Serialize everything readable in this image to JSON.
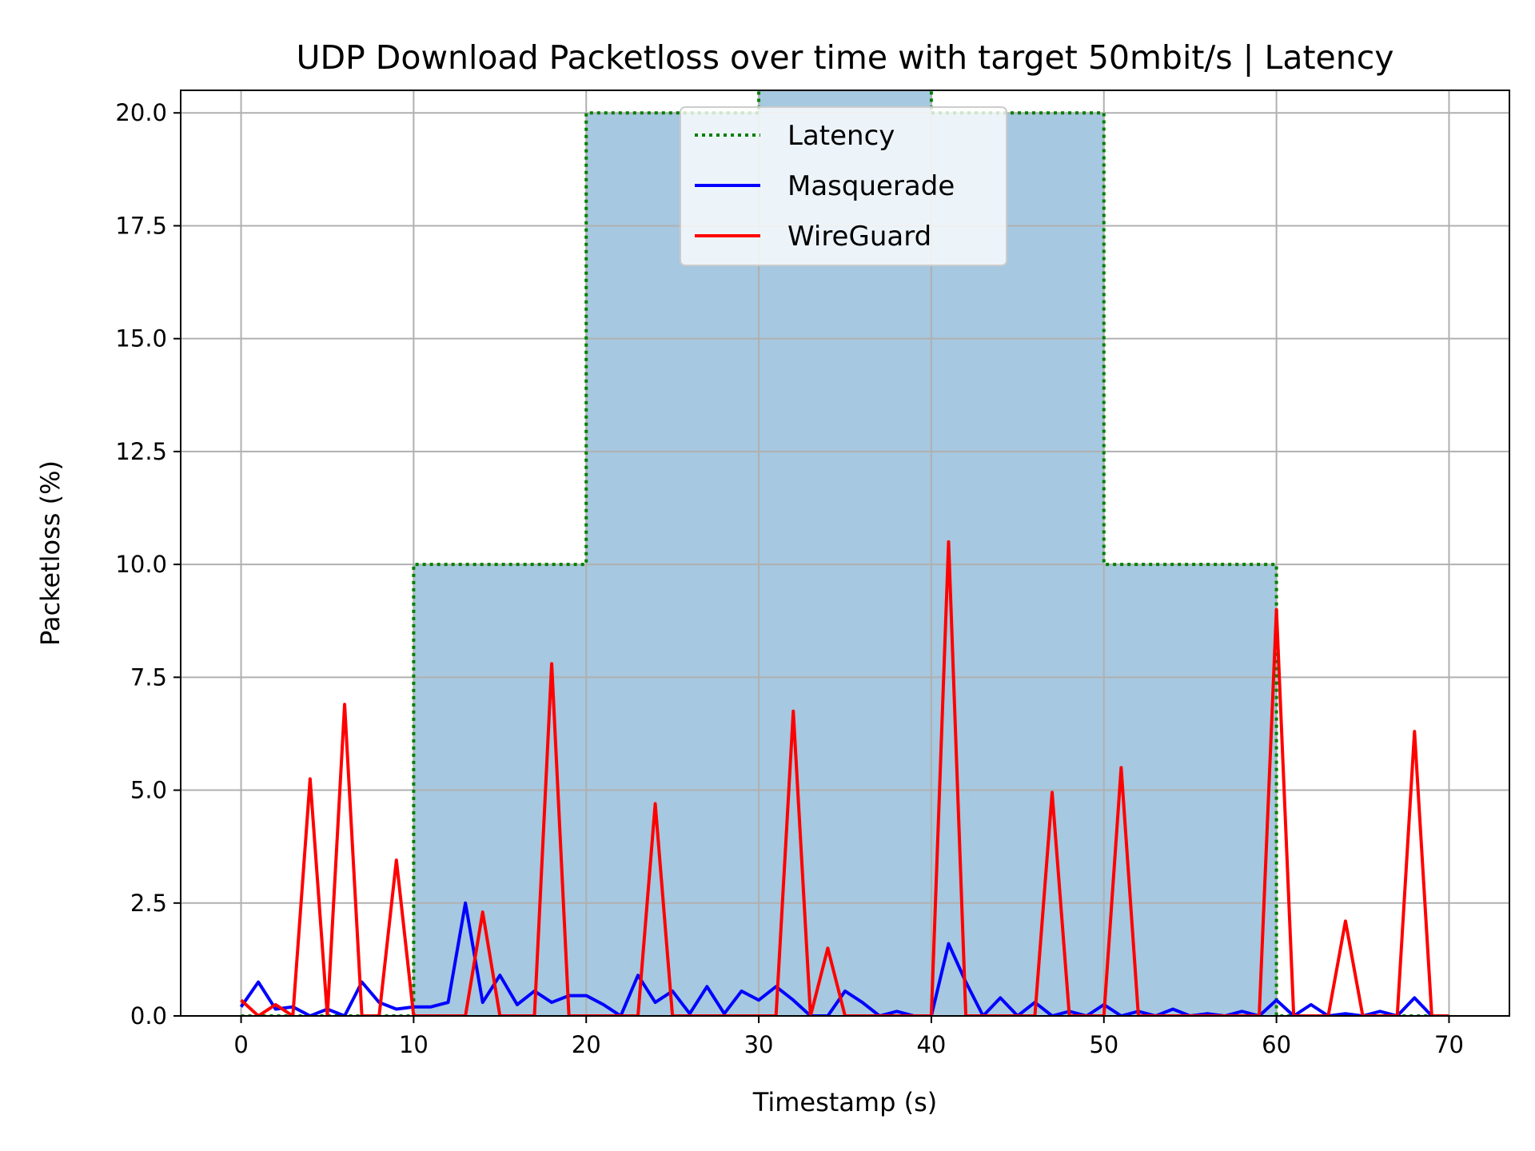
{
  "chart_data": {
    "type": "line",
    "title": "UDP Download Packetloss over time with target 50mbit/s | Latency",
    "xlabel": "Timestamp (s)",
    "ylabel": "Packetloss (%)",
    "xlim": [
      -3.5,
      73.5
    ],
    "ylim": [
      0,
      20.5
    ],
    "xticks": [
      0,
      10,
      20,
      30,
      40,
      50,
      60,
      70
    ],
    "yticks": [
      0,
      2.5,
      5,
      7.5,
      10,
      12.5,
      15,
      17.5,
      20
    ],
    "ytick_labels": [
      "0.0",
      "2.5",
      "5.0",
      "7.5",
      "10.0",
      "12.5",
      "15.0",
      "17.5",
      "20.0"
    ],
    "grid": true,
    "legend_position": "top-center",
    "fill_color": "#a6c8e0",
    "latency": {
      "name": "Latency",
      "color": "#008000",
      "style": "dotted",
      "steps": [
        {
          "x0": 0,
          "x1": 10,
          "y": 0
        },
        {
          "x0": 10,
          "x1": 20,
          "y": 10
        },
        {
          "x0": 20,
          "x1": 30,
          "y": 20
        },
        {
          "x0": 30,
          "x1": 40,
          "y": 30
        },
        {
          "x0": 40,
          "x1": 50,
          "y": 20
        },
        {
          "x0": 50,
          "x1": 60,
          "y": 10
        },
        {
          "x0": 60,
          "x1": 70,
          "y": 0
        }
      ]
    },
    "series": [
      {
        "name": "Masquerade",
        "color": "#0000ff",
        "x": [
          0,
          1,
          2,
          3,
          4,
          5,
          6,
          7,
          8,
          9,
          10,
          11,
          12,
          13,
          14,
          15,
          16,
          17,
          18,
          19,
          20,
          21,
          22,
          23,
          24,
          25,
          26,
          27,
          28,
          29,
          30,
          31,
          32,
          33,
          34,
          35,
          36,
          37,
          38,
          39,
          40,
          41,
          42,
          43,
          44,
          45,
          46,
          47,
          48,
          49,
          50,
          51,
          52,
          53,
          54,
          55,
          56,
          57,
          58,
          59,
          60,
          61,
          62,
          63,
          64,
          65,
          66,
          67,
          68,
          69,
          70
        ],
        "values": [
          0.2,
          0.75,
          0.15,
          0.2,
          0.0,
          0.15,
          0.0,
          0.75,
          0.3,
          0.15,
          0.2,
          0.2,
          0.3,
          2.5,
          0.3,
          0.9,
          0.25,
          0.55,
          0.3,
          0.45,
          0.45,
          0.25,
          0.0,
          0.9,
          0.3,
          0.55,
          0.05,
          0.65,
          0.05,
          0.55,
          0.35,
          0.65,
          0.35,
          0.0,
          0.0,
          0.55,
          0.3,
          0.0,
          0.1,
          0.0,
          0.0,
          1.6,
          0.75,
          0.0,
          0.4,
          0.0,
          0.3,
          0.0,
          0.1,
          0.0,
          0.25,
          0.0,
          0.1,
          0.0,
          0.15,
          0.0,
          0.05,
          0.0,
          0.1,
          0.0,
          0.35,
          0.0,
          0.25,
          0.0,
          0.05,
          0.0,
          0.1,
          0.0,
          0.4,
          0.0,
          0.0
        ]
      },
      {
        "name": "WireGuard",
        "color": "#ff0000",
        "x": [
          0,
          1,
          2,
          3,
          4,
          5,
          6,
          7,
          8,
          9,
          10,
          11,
          12,
          13,
          14,
          15,
          16,
          17,
          18,
          19,
          20,
          21,
          22,
          23,
          24,
          25,
          26,
          27,
          28,
          29,
          30,
          31,
          32,
          33,
          34,
          35,
          36,
          37,
          38,
          39,
          40,
          41,
          42,
          43,
          44,
          45,
          46,
          47,
          48,
          49,
          50,
          51,
          52,
          53,
          54,
          55,
          56,
          57,
          58,
          59,
          60,
          61,
          62,
          63,
          64,
          65,
          66,
          67,
          68,
          69,
          70
        ],
        "values": [
          0.35,
          0.0,
          0.25,
          0.0,
          5.25,
          0.0,
          6.9,
          0.0,
          0.0,
          3.45,
          0.0,
          0.0,
          0.0,
          0.0,
          2.3,
          0.0,
          0.0,
          0.0,
          7.8,
          0.0,
          0.0,
          0.0,
          0.0,
          0.0,
          4.7,
          0.0,
          0.0,
          0.0,
          0.0,
          0.0,
          0.0,
          0.0,
          6.75,
          0.0,
          1.5,
          0.0,
          0.0,
          0.0,
          0.0,
          0.0,
          0.0,
          10.5,
          0.0,
          0.0,
          0.0,
          0.0,
          0.0,
          4.95,
          0.0,
          0.0,
          0.0,
          5.5,
          0.0,
          0.0,
          0.0,
          0.0,
          0.0,
          0.0,
          0.0,
          0.0,
          9.0,
          0.0,
          0.0,
          0.0,
          2.1,
          0.0,
          0.0,
          0.0,
          6.3,
          0.0,
          0.0
        ]
      }
    ]
  }
}
